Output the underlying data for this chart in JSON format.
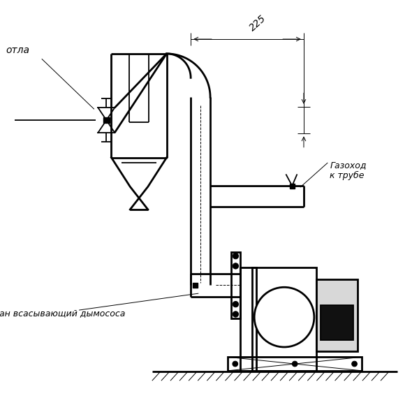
{
  "bg_color": "#ffffff",
  "lc": "#000000",
  "lw_thick": 2.0,
  "lw_medium": 1.3,
  "lw_thin": 0.7,
  "annotation_kotla": "отла",
  "annotation_gazokhod": "Газоход\nк трубе",
  "annotation_vsan": "ан всасывающий дымососа",
  "dim_225": "225"
}
